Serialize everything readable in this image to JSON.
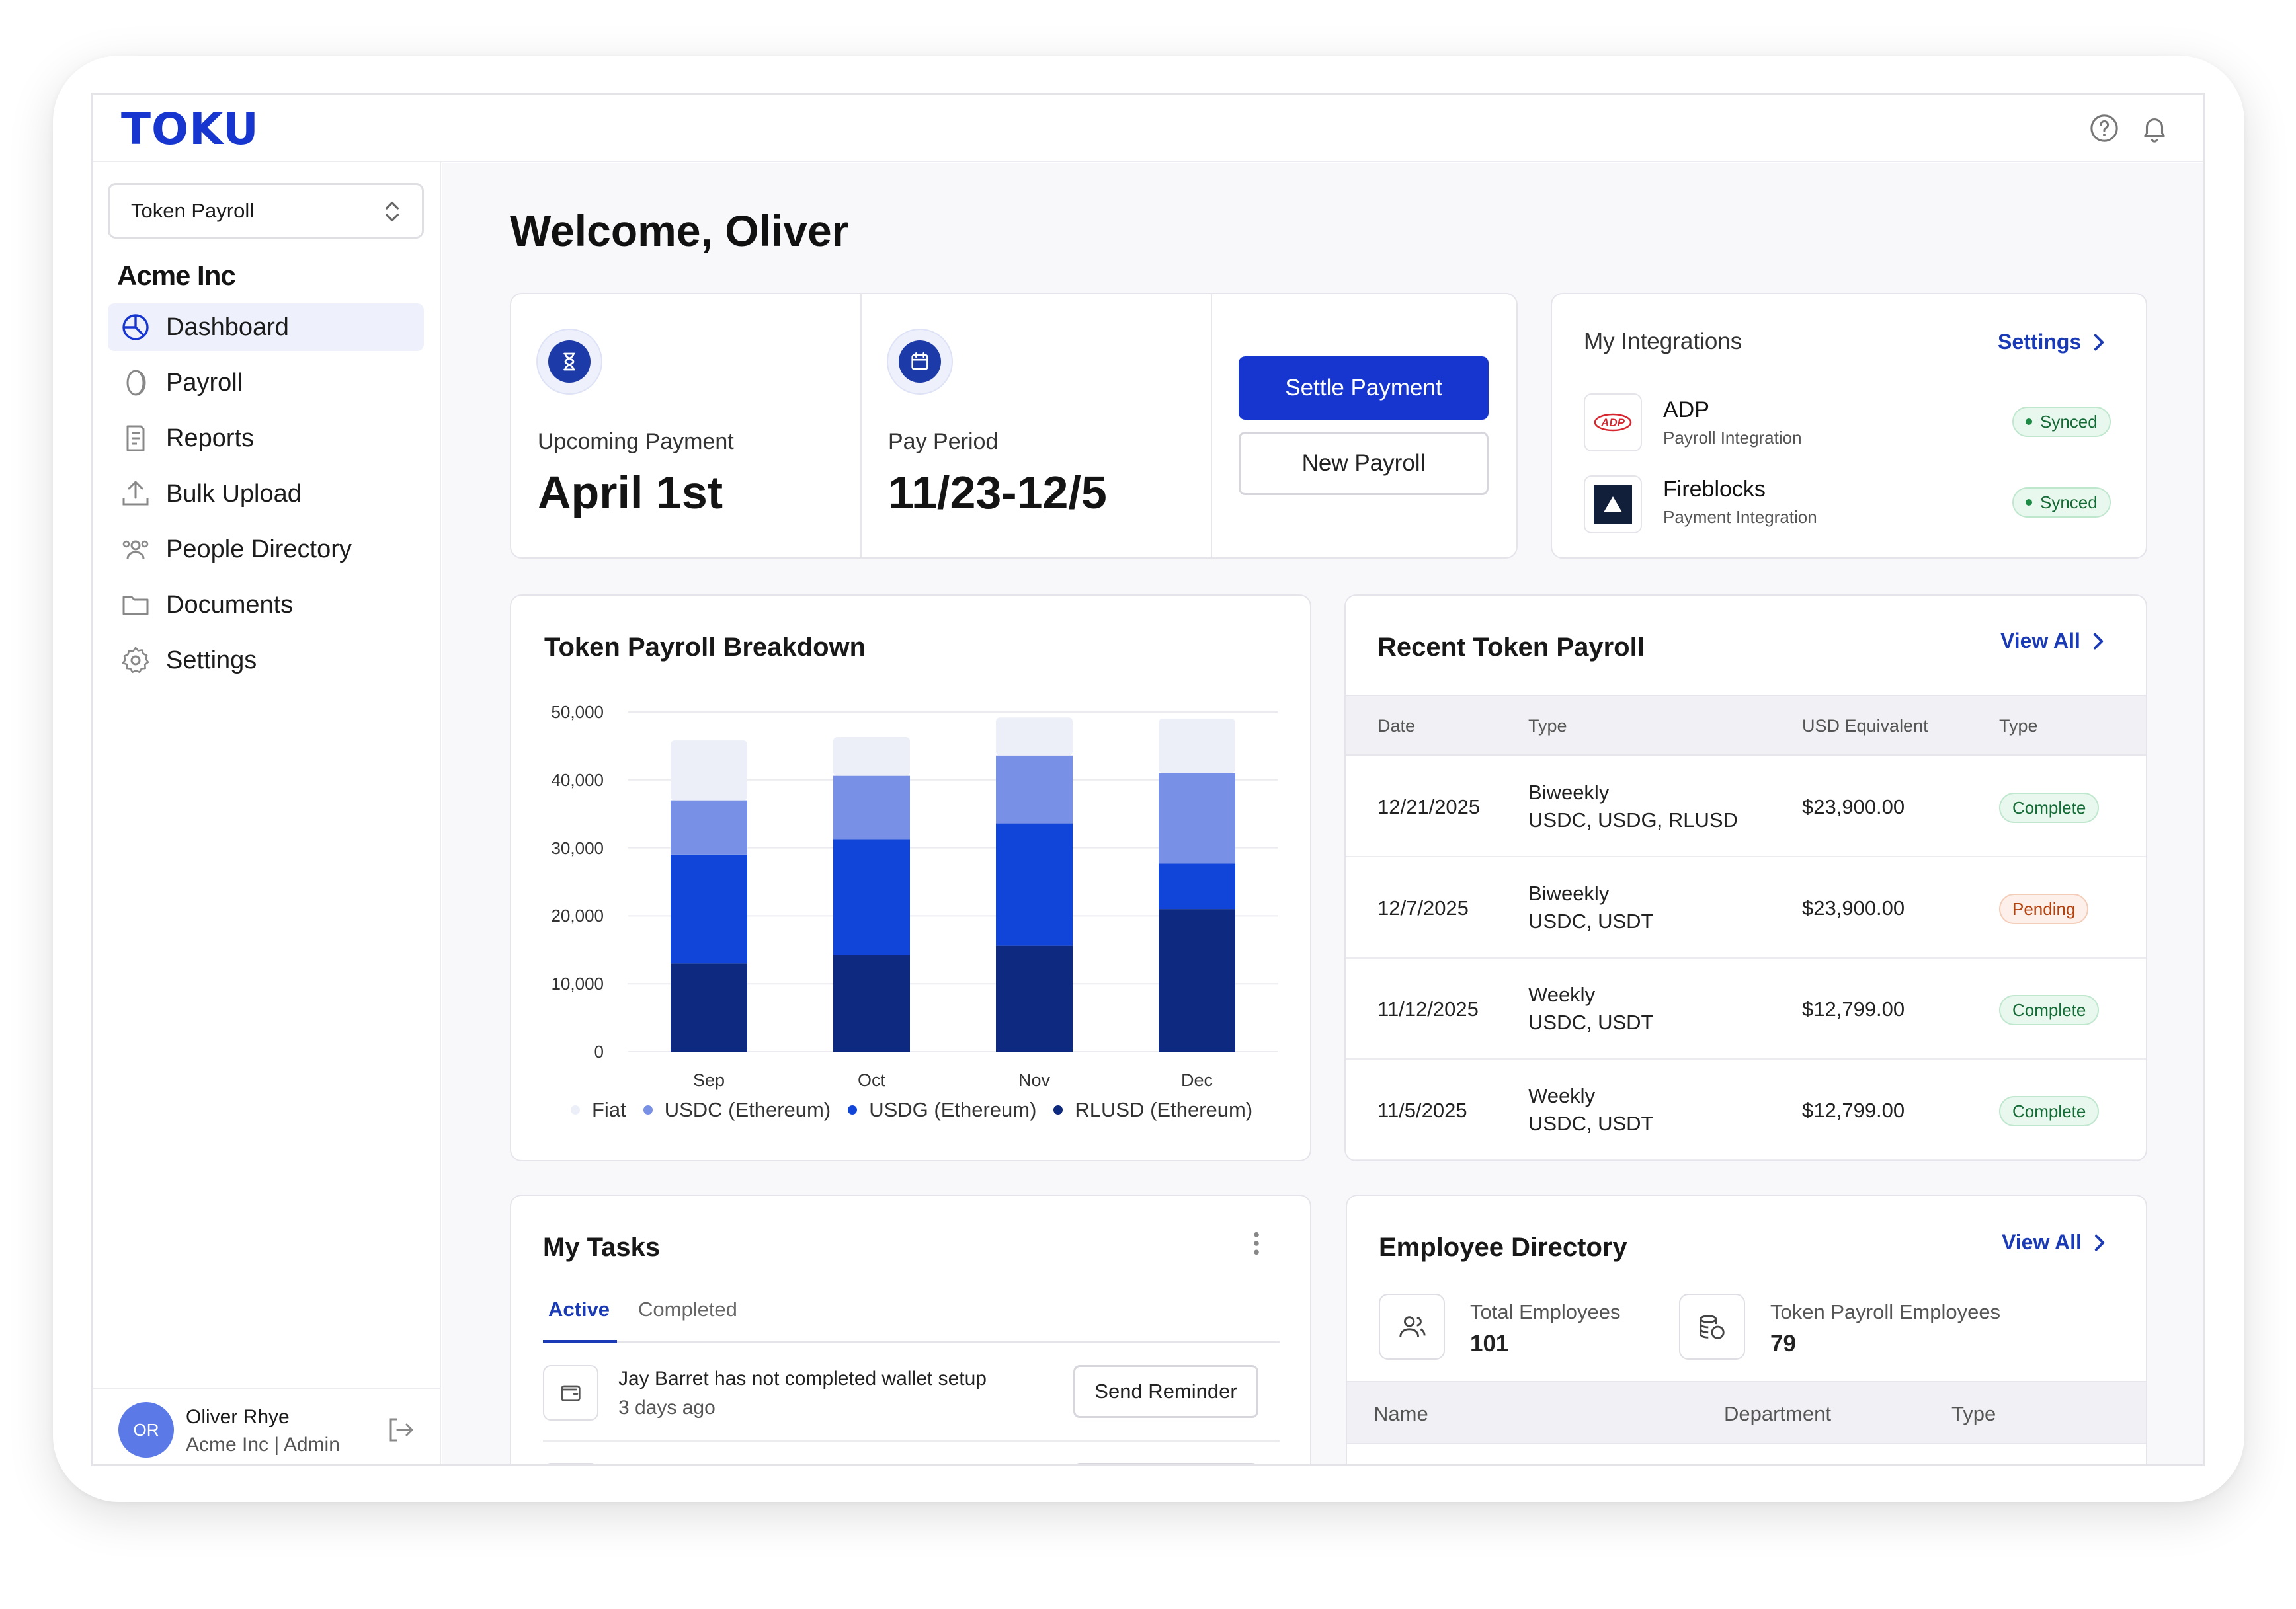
{
  "app": {
    "logo": "TOKU"
  },
  "sidebar": {
    "org_select": "Token Payroll",
    "org_name": "Acme Inc",
    "items": [
      {
        "label": "Dashboard",
        "icon": "dashboard-icon",
        "active": true
      },
      {
        "label": "Payroll",
        "icon": "coin-icon"
      },
      {
        "label": "Reports",
        "icon": "reports-icon"
      },
      {
        "label": "Bulk Upload",
        "icon": "upload-icon"
      },
      {
        "label": "People Directory",
        "icon": "people-icon"
      },
      {
        "label": "Documents",
        "icon": "folder-icon"
      },
      {
        "label": "Settings",
        "icon": "gear-icon"
      }
    ],
    "user": {
      "initials": "OR",
      "name": "Oliver Rhye",
      "role": "Acme Inc | Admin"
    }
  },
  "main": {
    "welcome": "Welcome, Oliver",
    "summary": {
      "upcoming_label": "Upcoming Payment",
      "upcoming_value": "April 1st",
      "period_label": "Pay Period",
      "period_value": "11/23-12/5",
      "settle_button": "Settle Payment",
      "new_payroll_button": "New Payroll"
    },
    "integrations": {
      "title": "My Integrations",
      "settings_link": "Settings",
      "items": [
        {
          "name": "ADP",
          "sub": "Payroll Integration",
          "status": "Synced",
          "logo": "ADP"
        },
        {
          "name": "Fireblocks",
          "sub": "Payment Integration",
          "status": "Synced"
        }
      ]
    },
    "breakdown": {
      "title": "Token Payroll Breakdown"
    },
    "recent": {
      "title": "Recent Token Payroll",
      "view_all": "View All",
      "headers": [
        "Date",
        "Type",
        "USD Equivalent",
        "Type"
      ],
      "rows": [
        {
          "date": "12/21/2025",
          "freq": "Biweekly",
          "tokens": "USDC, USDG, RLUSD",
          "usd": "$23,900.00",
          "status": "Complete",
          "color": "green"
        },
        {
          "date": "12/7/2025",
          "freq": "Biweekly",
          "tokens": "USDC, USDT",
          "usd": "$23,900.00",
          "status": "Pending",
          "color": "orange"
        },
        {
          "date": "11/12/2025",
          "freq": "Weekly",
          "tokens": "USDC, USDT",
          "usd": "$12,799.00",
          "status": "Complete",
          "color": "green"
        },
        {
          "date": "11/5/2025",
          "freq": "Weekly",
          "tokens": "USDC, USDT",
          "usd": "$12,799.00",
          "status": "Complete",
          "color": "green"
        }
      ]
    },
    "tasks": {
      "title": "My Tasks",
      "tab_active": "Active",
      "tab_completed": "Completed",
      "items": [
        {
          "text": "Jay Barret has not completed wallet setup",
          "time": "3 days ago",
          "action": "Send Reminder"
        }
      ]
    },
    "employees": {
      "title": "Employee Directory",
      "view_all": "View All",
      "total_label": "Total Employees",
      "total_value": "101",
      "token_label": "Token Payroll Employees",
      "token_value": "79",
      "headers": [
        "Name",
        "Department",
        "Type"
      ]
    }
  },
  "colors": {
    "brand": "#1736d0",
    "fiat": "#eceff8",
    "usdc": "#7891e6",
    "usdg": "#1144d8",
    "rlusd": "#0d2a80"
  },
  "chart_data": {
    "type": "bar",
    "stacked": true,
    "categories": [
      "Sep",
      "Oct",
      "Nov",
      "Dec"
    ],
    "ylim": [
      0,
      50000
    ],
    "yticks": [
      "50,000",
      "40,000",
      "30,000",
      "20,000",
      "10,000",
      "0"
    ],
    "series": [
      {
        "name": "RLUSD (Ethereum)",
        "color": "#0d2a80",
        "values": [
          13000,
          14300,
          15600,
          21000
        ]
      },
      {
        "name": "USDG (Ethereum)",
        "color": "#1144d8",
        "values": [
          16000,
          17000,
          18000,
          6700
        ]
      },
      {
        "name": "USDC (Ethereum)",
        "color": "#7891e6",
        "values": [
          8000,
          9300,
          10000,
          13300
        ]
      },
      {
        "name": "Fiat",
        "color": "#eceff8",
        "values": [
          8800,
          5700,
          5600,
          8000
        ]
      }
    ],
    "legend_order": [
      "Fiat",
      "USDC (Ethereum)",
      "USDG (Ethereum)",
      "RLUSD (Ethereum)"
    ],
    "grid": true
  }
}
